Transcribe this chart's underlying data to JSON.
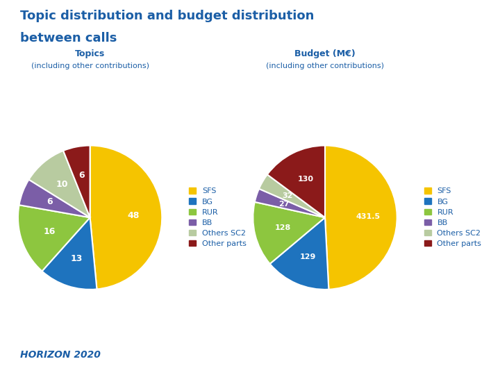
{
  "title_line1": "Topic distribution and budget distribution",
  "title_line2": "between calls",
  "title_color": "#1b5ea6",
  "background_color": "#ffffff",
  "pie1_title": "Topics",
  "pie1_subtitle": "(including other contributions)",
  "pie2_title": "Budget (M€)",
  "pie2_subtitle": "(including other contributions)",
  "pie1_values": [
    48,
    13,
    16,
    6,
    10,
    6
  ],
  "pie1_labels": [
    "48",
    "13",
    "16",
    "6",
    "10",
    "6"
  ],
  "pie1_colors": [
    "#f5c400",
    "#1e73be",
    "#8dc63f",
    "#7b5ea7",
    "#b8cba0",
    "#8b1a1a"
  ],
  "pie2_values": [
    431.5,
    129,
    128,
    27,
    32,
    130
  ],
  "pie2_labels": [
    "431.5",
    "129",
    "128",
    "27",
    "32",
    "130"
  ],
  "pie2_colors": [
    "#f5c400",
    "#1e73be",
    "#8dc63f",
    "#7b5ea7",
    "#b8cba0",
    "#8b1a1a"
  ],
  "legend_labels": [
    "SFS",
    "BG",
    "RUR",
    "BB",
    "Others SC2",
    "Other parts"
  ],
  "legend_colors": [
    "#f5c400",
    "#1e73be",
    "#8dc63f",
    "#7b5ea7",
    "#b8cba0",
    "#8b1a1a"
  ],
  "label_color": "#ffffff",
  "title_text_color": "#1b5ea6",
  "horizon_text": "HORIZON 2020",
  "horizon_color": "#1b5ea6",
  "startangle1": 90,
  "startangle2": 90
}
